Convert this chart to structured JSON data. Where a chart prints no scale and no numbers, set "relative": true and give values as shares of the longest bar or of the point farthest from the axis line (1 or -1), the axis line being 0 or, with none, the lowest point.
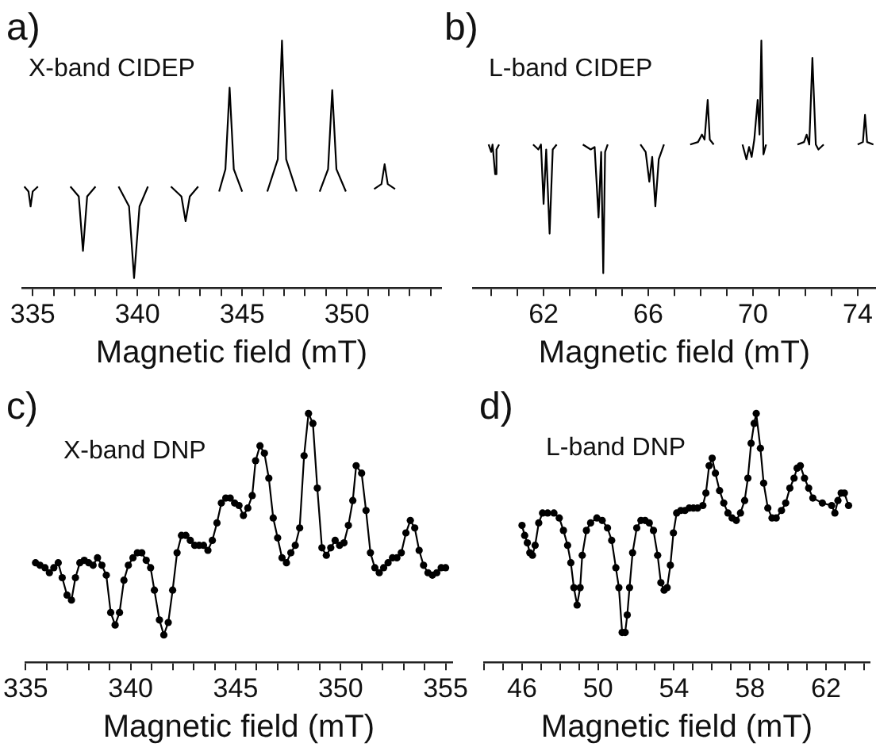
{
  "chart_data": [
    {
      "type": "line",
      "title": "a)",
      "subtitle": "X-band CIDEP",
      "xlabel": "Magnetic field (mT)",
      "relative": true,
      "marker": "none",
      "line_style": "solid",
      "color": "#000000",
      "xlim": [
        334.5,
        354.5
      ],
      "xticks": [
        335,
        {
          "value": 336,
          "label": null
        },
        {
          "value": 337,
          "label": null
        },
        {
          "value": 338,
          "label": null
        },
        {
          "value": 339,
          "label": null
        },
        340,
        {
          "value": 341,
          "label": null
        },
        {
          "value": 342,
          "label": null
        },
        {
          "value": 343,
          "label": null
        },
        {
          "value": 344,
          "label": null
        },
        345,
        {
          "value": 346,
          "label": null
        },
        {
          "value": 347,
          "label": null
        },
        {
          "value": 348,
          "label": null
        },
        {
          "value": 349,
          "label": null
        },
        350,
        {
          "value": 351,
          "label": null
        },
        {
          "value": 352,
          "label": null
        },
        {
          "value": 353,
          "label": null
        },
        {
          "value": 354,
          "label": null
        }
      ],
      "x": [
        334.6,
        334.8,
        334.9,
        335.0,
        335.25,
        336,
        336.8,
        337.2,
        337.4,
        337.6,
        338.0,
        338.5,
        339.1,
        339.6,
        339.84,
        340.1,
        340.5,
        341,
        341.6,
        342.1,
        342.3,
        342.5,
        342.9,
        343.4,
        343.9,
        344.2,
        344.4,
        344.6,
        345.0,
        345.6,
        346.2,
        346.7,
        346.9,
        347.1,
        347.6,
        348.1,
        348.7,
        349.1,
        349.3,
        349.5,
        349.95,
        350.6,
        351.3,
        351.65,
        351.8,
        351.95,
        352.3
      ],
      "values": [
        0.41,
        0.39,
        0.33,
        0.39,
        0.41,
        null,
        0.41,
        0.37,
        0.15,
        0.37,
        0.41,
        null,
        0.41,
        0.33,
        0.04,
        0.33,
        0.41,
        null,
        0.41,
        0.37,
        0.27,
        0.37,
        0.41,
        null,
        0.39,
        0.48,
        0.81,
        0.48,
        0.39,
        null,
        0.39,
        0.52,
        1.0,
        0.52,
        0.39,
        null,
        0.39,
        0.48,
        0.8,
        0.48,
        0.39,
        null,
        0.4,
        0.42,
        0.5,
        0.42,
        0.4
      ]
    },
    {
      "type": "line",
      "title": "b)",
      "subtitle": "L-band CIDEP",
      "xlabel": "Magnetic field (mT)",
      "relative": true,
      "marker": "none",
      "line_style": "solid",
      "color": "#000000",
      "xlim": [
        59.3,
        74.7
      ],
      "xticks": [
        {
          "value": 60,
          "label": null
        },
        {
          "value": 61,
          "label": null
        },
        62,
        {
          "value": 63,
          "label": null
        },
        {
          "value": 64,
          "label": null
        },
        {
          "value": 65,
          "label": null
        },
        66,
        {
          "value": 67,
          "label": null
        },
        {
          "value": 68,
          "label": null
        },
        {
          "value": 69,
          "label": null
        },
        70,
        {
          "value": 71,
          "label": null
        },
        {
          "value": 72,
          "label": null
        },
        {
          "value": 73,
          "label": null
        },
        74
      ],
      "x": [
        59.9,
        60.0,
        60.05,
        60.1,
        60.15,
        60.2,
        60.3,
        61,
        61.6,
        61.8,
        61.9,
        62.0,
        62.1,
        62.23,
        62.35,
        62.5,
        63,
        63.5,
        63.8,
        63.95,
        64.1,
        64.2,
        64.28,
        64.35,
        64.45,
        65,
        65.7,
        65.9,
        66.04,
        66.15,
        66.27,
        66.4,
        66.6,
        67,
        67.6,
        67.9,
        68.05,
        68.15,
        68.27,
        68.35,
        68.5,
        69,
        69.6,
        69.75,
        69.85,
        69.95,
        70.05,
        70.18,
        70.25,
        70.32,
        70.4,
        70.5,
        71,
        71.7,
        71.95,
        72.05,
        72.15,
        72.27,
        72.4,
        72.5,
        72.7,
        73.3,
        74.0,
        74.2,
        74.28,
        74.36,
        74.6
      ],
      "values": [
        0.58,
        0.55,
        0.58,
        0.52,
        0.46,
        0.56,
        0.58,
        null,
        0.58,
        0.56,
        0.58,
        0.34,
        0.56,
        0.22,
        0.56,
        0.58,
        null,
        0.58,
        0.56,
        0.57,
        0.285,
        0.55,
        0.06,
        0.55,
        0.58,
        null,
        0.58,
        0.55,
        0.43,
        0.53,
        0.33,
        0.52,
        0.58,
        null,
        0.58,
        0.59,
        0.62,
        0.6,
        0.76,
        0.6,
        0.58,
        null,
        0.58,
        0.52,
        0.57,
        0.53,
        0.6,
        0.76,
        0.62,
        1.0,
        0.54,
        0.58,
        null,
        0.58,
        0.59,
        0.62,
        0.58,
        0.93,
        0.58,
        0.56,
        0.58,
        null,
        0.58,
        0.59,
        0.7,
        0.59,
        0.58
      ]
    },
    {
      "type": "line",
      "title": "c)",
      "subtitle": "X-band DNP",
      "xlabel": "Magnetic field (mT)",
      "relative": true,
      "marker": "circle",
      "line_style": "solid",
      "color": "#000000",
      "xlim": [
        335,
        355.3
      ],
      "xticks": [
        335,
        {
          "value": 336,
          "label": null
        },
        {
          "value": 337,
          "label": null
        },
        {
          "value": 338,
          "label": null
        },
        {
          "value": 339,
          "label": null
        },
        340,
        {
          "value": 341,
          "label": null
        },
        {
          "value": 342,
          "label": null
        },
        {
          "value": 343,
          "label": null
        },
        {
          "value": 344,
          "label": null
        },
        345,
        {
          "value": 346,
          "label": null
        },
        {
          "value": 347,
          "label": null
        },
        {
          "value": 348,
          "label": null
        },
        {
          "value": 349,
          "label": null
        },
        350,
        {
          "value": 351,
          "label": null
        },
        {
          "value": 352,
          "label": null
        },
        {
          "value": 353,
          "label": null
        },
        {
          "value": 354,
          "label": null
        },
        355
      ],
      "x": [
        335.47,
        335.68,
        335.92,
        336.13,
        336.34,
        336.55,
        336.74,
        336.97,
        337.18,
        337.37,
        337.58,
        337.79,
        338.0,
        338.21,
        338.42,
        338.63,
        338.84,
        339.05,
        339.26,
        339.47,
        339.68,
        339.89,
        340.11,
        340.32,
        340.53,
        340.74,
        340.95,
        341.13,
        341.37,
        341.58,
        341.79,
        342.0,
        342.21,
        342.42,
        342.63,
        342.84,
        343.05,
        343.26,
        343.47,
        343.68,
        343.89,
        344.11,
        344.32,
        344.53,
        344.74,
        344.95,
        345.16,
        345.37,
        345.58,
        345.79,
        345.95,
        346.16,
        346.37,
        346.58,
        346.79,
        347.0,
        347.21,
        347.42,
        347.63,
        347.84,
        348.05,
        348.26,
        348.47,
        348.68,
        348.89,
        349.11,
        349.32,
        349.53,
        349.74,
        349.95,
        350.16,
        350.37,
        350.58,
        350.74,
        351.0,
        351.21,
        351.42,
        351.63,
        351.84,
        352.05,
        352.26,
        352.47,
        352.68,
        352.89,
        353.11,
        353.32,
        353.53,
        353.74,
        353.95,
        354.16,
        354.37,
        354.58,
        354.79,
        355.0
      ],
      "values": [
        0.4,
        0.39,
        0.38,
        0.36,
        0.38,
        0.4,
        0.34,
        0.27,
        0.25,
        0.34,
        0.4,
        0.41,
        0.4,
        0.39,
        0.42,
        0.39,
        0.35,
        0.2,
        0.15,
        0.2,
        0.33,
        0.39,
        0.42,
        0.44,
        0.44,
        0.41,
        0.38,
        0.29,
        0.17,
        0.11,
        0.16,
        0.29,
        0.44,
        0.51,
        0.51,
        0.49,
        0.47,
        0.47,
        0.47,
        0.45,
        0.49,
        0.56,
        0.64,
        0.66,
        0.66,
        0.64,
        0.63,
        0.59,
        0.62,
        0.67,
        0.81,
        0.87,
        0.84,
        0.74,
        0.58,
        0.5,
        0.42,
        0.4,
        0.44,
        0.47,
        0.54,
        0.83,
        1.0,
        0.96,
        0.7,
        0.46,
        0.43,
        0.46,
        0.49,
        0.47,
        0.48,
        0.55,
        0.65,
        0.79,
        0.76,
        0.61,
        0.44,
        0.38,
        0.36,
        0.38,
        0.4,
        0.42,
        0.42,
        0.44,
        0.52,
        0.57,
        0.54,
        0.45,
        0.39,
        0.36,
        0.35,
        0.36,
        0.38,
        0.38
      ]
    },
    {
      "type": "line",
      "title": "d)",
      "subtitle": "L-band DNP",
      "xlabel": "Magnetic field (mT)",
      "relative": true,
      "marker": "circle",
      "line_style": "solid",
      "color": "#000000",
      "xlim": [
        44,
        64.3
      ],
      "xticks": [
        {
          "value": 44,
          "label": null
        },
        {
          "value": 45,
          "label": null
        },
        46,
        {
          "value": 47,
          "label": null
        },
        {
          "value": 48,
          "label": null
        },
        {
          "value": 49,
          "label": null
        },
        50,
        {
          "value": 51,
          "label": null
        },
        {
          "value": 52,
          "label": null
        },
        {
          "value": 53,
          "label": null
        },
        54,
        {
          "value": 55,
          "label": null
        },
        {
          "value": 56,
          "label": null
        },
        {
          "value": 57,
          "label": null
        },
        58,
        {
          "value": 59,
          "label": null
        },
        {
          "value": 60,
          "label": null
        },
        {
          "value": 61,
          "label": null
        },
        62,
        {
          "value": 63,
          "label": null
        },
        {
          "value": 64,
          "label": null
        }
      ],
      "x": [
        46.0,
        46.14,
        46.28,
        46.41,
        46.55,
        46.69,
        46.88,
        47.08,
        47.35,
        47.68,
        47.96,
        48.18,
        48.4,
        48.57,
        48.73,
        48.9,
        49.06,
        49.17,
        49.39,
        49.61,
        49.94,
        50.22,
        50.5,
        50.72,
        50.94,
        51.1,
        51.27,
        51.43,
        51.54,
        51.66,
        51.82,
        52.04,
        52.26,
        52.48,
        52.7,
        52.92,
        53.14,
        53.31,
        53.48,
        53.64,
        53.81,
        53.97,
        54.14,
        54.36,
        54.58,
        54.8,
        55.02,
        55.24,
        55.52,
        55.68,
        55.85,
        56.01,
        56.18,
        56.4,
        56.62,
        56.84,
        57.06,
        57.28,
        57.5,
        57.72,
        57.89,
        58.06,
        58.22,
        58.33,
        58.55,
        58.72,
        58.94,
        59.16,
        59.38,
        59.66,
        59.88,
        60.1,
        60.32,
        60.48,
        60.65,
        60.87,
        61.09,
        61.31,
        61.81,
        62.3,
        62.47,
        62.63,
        62.8,
        62.97,
        63.19
      ],
      "values": [
        0.55,
        0.51,
        0.48,
        0.44,
        0.43,
        0.47,
        0.56,
        0.6,
        0.6,
        0.6,
        0.58,
        0.53,
        0.47,
        0.4,
        0.3,
        0.23,
        0.3,
        0.43,
        0.53,
        0.56,
        0.58,
        0.57,
        0.54,
        0.49,
        0.38,
        0.3,
        0.12,
        0.12,
        0.19,
        0.3,
        0.44,
        0.54,
        0.57,
        0.57,
        0.56,
        0.53,
        0.43,
        0.32,
        0.29,
        0.3,
        0.39,
        0.52,
        0.6,
        0.61,
        0.61,
        0.62,
        0.62,
        0.62,
        0.63,
        0.68,
        0.79,
        0.82,
        0.76,
        0.69,
        0.64,
        0.6,
        0.58,
        0.57,
        0.6,
        0.65,
        0.74,
        0.88,
        0.96,
        1.0,
        0.86,
        0.72,
        0.62,
        0.58,
        0.58,
        0.61,
        0.64,
        0.7,
        0.74,
        0.78,
        0.79,
        0.74,
        0.7,
        0.66,
        0.64,
        0.63,
        0.6,
        0.65,
        0.68,
        0.68,
        0.63
      ]
    }
  ]
}
